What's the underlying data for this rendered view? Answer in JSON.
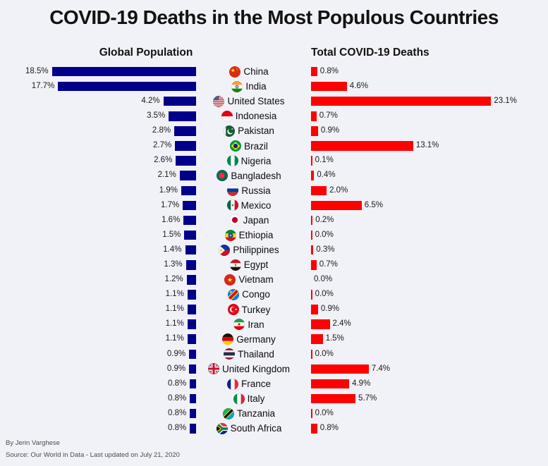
{
  "footer": {
    "byline": "By Jerin Varghese",
    "source": "Source: Our World in Data - Last updated on July 21, 2020"
  },
  "chart_data": {
    "type": "bar",
    "layout": "diverging-horizontal",
    "title": "COVID-19 Deaths in the Most Populous Countries",
    "left_header": "Global Population",
    "right_header": "Total COVID-19 Deaths",
    "unit": "%",
    "left_bar_color": "#00008B",
    "right_bar_color": "#FF0000",
    "left_axis_max": 18.5,
    "right_axis_max": 23.1,
    "categories": [
      "China",
      "India",
      "United States",
      "Indonesia",
      "Pakistan",
      "Brazil",
      "Nigeria",
      "Bangladesh",
      "Russia",
      "Mexico",
      "Japan",
      "Ethiopia",
      "Philippines",
      "Egypt",
      "Vietnam",
      "Congo",
      "Turkey",
      "Iran",
      "Germany",
      "Thailand",
      "United Kingdom",
      "France",
      "Italy",
      "Tanzania",
      "South Africa"
    ],
    "series": [
      {
        "name": "Global Population",
        "values": [
          18.5,
          17.7,
          4.2,
          3.5,
          2.8,
          2.7,
          2.6,
          2.1,
          1.9,
          1.7,
          1.6,
          1.5,
          1.4,
          1.3,
          1.2,
          1.1,
          1.1,
          1.1,
          1.1,
          0.9,
          0.9,
          0.8,
          0.8,
          0.8,
          0.8
        ]
      },
      {
        "name": "Total COVID-19 Deaths",
        "values": [
          0.8,
          4.6,
          23.1,
          0.7,
          0.9,
          13.1,
          0.1,
          0.4,
          2.0,
          6.5,
          0.2,
          0.0,
          0.3,
          0.7,
          0.0,
          0.0,
          0.9,
          2.4,
          1.5,
          0.0,
          7.4,
          4.9,
          5.7,
          0.0,
          0.8
        ]
      }
    ],
    "rows": [
      {
        "country": "China",
        "flag": "china-flag-icon",
        "population_pct": 18.5,
        "population_label": "18.5%",
        "deaths_pct": 0.8,
        "deaths_label": "0.8%",
        "deaths_bar": true
      },
      {
        "country": "India",
        "flag": "india-flag-icon",
        "population_pct": 17.7,
        "population_label": "17.7%",
        "deaths_pct": 4.6,
        "deaths_label": "4.6%",
        "deaths_bar": true
      },
      {
        "country": "United States",
        "flag": "united-states-flag-icon",
        "population_pct": 4.2,
        "population_label": "4.2%",
        "deaths_pct": 23.1,
        "deaths_label": "23.1%",
        "deaths_bar": true
      },
      {
        "country": "Indonesia",
        "flag": "indonesia-flag-icon",
        "population_pct": 3.5,
        "population_label": "3.5%",
        "deaths_pct": 0.7,
        "deaths_label": "0.7%",
        "deaths_bar": true
      },
      {
        "country": "Pakistan",
        "flag": "pakistan-flag-icon",
        "population_pct": 2.8,
        "population_label": "2.8%",
        "deaths_pct": 0.9,
        "deaths_label": "0.9%",
        "deaths_bar": true
      },
      {
        "country": "Brazil",
        "flag": "brazil-flag-icon",
        "population_pct": 2.7,
        "population_label": "2.7%",
        "deaths_pct": 13.1,
        "deaths_label": "13.1%",
        "deaths_bar": true
      },
      {
        "country": "Nigeria",
        "flag": "nigeria-flag-icon",
        "population_pct": 2.6,
        "population_label": "2.6%",
        "deaths_pct": 0.1,
        "deaths_label": "0.1%",
        "deaths_bar": true
      },
      {
        "country": "Bangladesh",
        "flag": "bangladesh-flag-icon",
        "population_pct": 2.1,
        "population_label": "2.1%",
        "deaths_pct": 0.4,
        "deaths_label": "0.4%",
        "deaths_bar": true
      },
      {
        "country": "Russia",
        "flag": "russia-flag-icon",
        "population_pct": 1.9,
        "population_label": "1.9%",
        "deaths_pct": 2.0,
        "deaths_label": "2.0%",
        "deaths_bar": true
      },
      {
        "country": "Mexico",
        "flag": "mexico-flag-icon",
        "population_pct": 1.7,
        "population_label": "1.7%",
        "deaths_pct": 6.5,
        "deaths_label": "6.5%",
        "deaths_bar": true
      },
      {
        "country": "Japan",
        "flag": "japan-flag-icon",
        "population_pct": 1.6,
        "population_label": "1.6%",
        "deaths_pct": 0.2,
        "deaths_label": "0.2%",
        "deaths_bar": true
      },
      {
        "country": "Ethiopia",
        "flag": "ethiopia-flag-icon",
        "population_pct": 1.5,
        "population_label": "1.5%",
        "deaths_pct": 0.0,
        "deaths_label": "0.0%",
        "deaths_bar": true
      },
      {
        "country": "Philippines",
        "flag": "philippines-flag-icon",
        "population_pct": 1.4,
        "population_label": "1.4%",
        "deaths_pct": 0.3,
        "deaths_label": "0.3%",
        "deaths_bar": true
      },
      {
        "country": "Egypt",
        "flag": "egypt-flag-icon",
        "population_pct": 1.3,
        "population_label": "1.3%",
        "deaths_pct": 0.7,
        "deaths_label": "0.7%",
        "deaths_bar": true
      },
      {
        "country": "Vietnam",
        "flag": "vietnam-flag-icon",
        "population_pct": 1.2,
        "population_label": "1.2%",
        "deaths_pct": 0.0,
        "deaths_label": "0.0%",
        "deaths_bar": false
      },
      {
        "country": "Congo",
        "flag": "congo-flag-icon",
        "population_pct": 1.1,
        "population_label": "1.1%",
        "deaths_pct": 0.0,
        "deaths_label": "0.0%",
        "deaths_bar": true
      },
      {
        "country": "Turkey",
        "flag": "turkey-flag-icon",
        "population_pct": 1.1,
        "population_label": "1.1%",
        "deaths_pct": 0.9,
        "deaths_label": "0.9%",
        "deaths_bar": true
      },
      {
        "country": "Iran",
        "flag": "iran-flag-icon",
        "population_pct": 1.1,
        "population_label": "1.1%",
        "deaths_pct": 2.4,
        "deaths_label": "2.4%",
        "deaths_bar": true
      },
      {
        "country": "Germany",
        "flag": "germany-flag-icon",
        "population_pct": 1.1,
        "population_label": "1.1%",
        "deaths_pct": 1.5,
        "deaths_label": "1.5%",
        "deaths_bar": true
      },
      {
        "country": "Thailand",
        "flag": "thailand-flag-icon",
        "population_pct": 0.9,
        "population_label": "0.9%",
        "deaths_pct": 0.0,
        "deaths_label": "0.0%",
        "deaths_bar": true
      },
      {
        "country": "United Kingdom",
        "flag": "united-kingdom-flag-icon",
        "population_pct": 0.9,
        "population_label": "0.9%",
        "deaths_pct": 7.4,
        "deaths_label": "7.4%",
        "deaths_bar": true
      },
      {
        "country": "France",
        "flag": "france-flag-icon",
        "population_pct": 0.8,
        "population_label": "0.8%",
        "deaths_pct": 4.9,
        "deaths_label": "4.9%",
        "deaths_bar": true
      },
      {
        "country": "Italy",
        "flag": "italy-flag-icon",
        "population_pct": 0.8,
        "population_label": "0.8%",
        "deaths_pct": 5.7,
        "deaths_label": "5.7%",
        "deaths_bar": true
      },
      {
        "country": "Tanzania",
        "flag": "tanzania-flag-icon",
        "population_pct": 0.8,
        "population_label": "0.8%",
        "deaths_pct": 0.0,
        "deaths_label": "0.0%",
        "deaths_bar": true
      },
      {
        "country": "South Africa",
        "flag": "south-africa-flag-icon",
        "population_pct": 0.8,
        "population_label": "0.8%",
        "deaths_pct": 0.8,
        "deaths_label": "0.8%",
        "deaths_bar": true
      }
    ]
  }
}
